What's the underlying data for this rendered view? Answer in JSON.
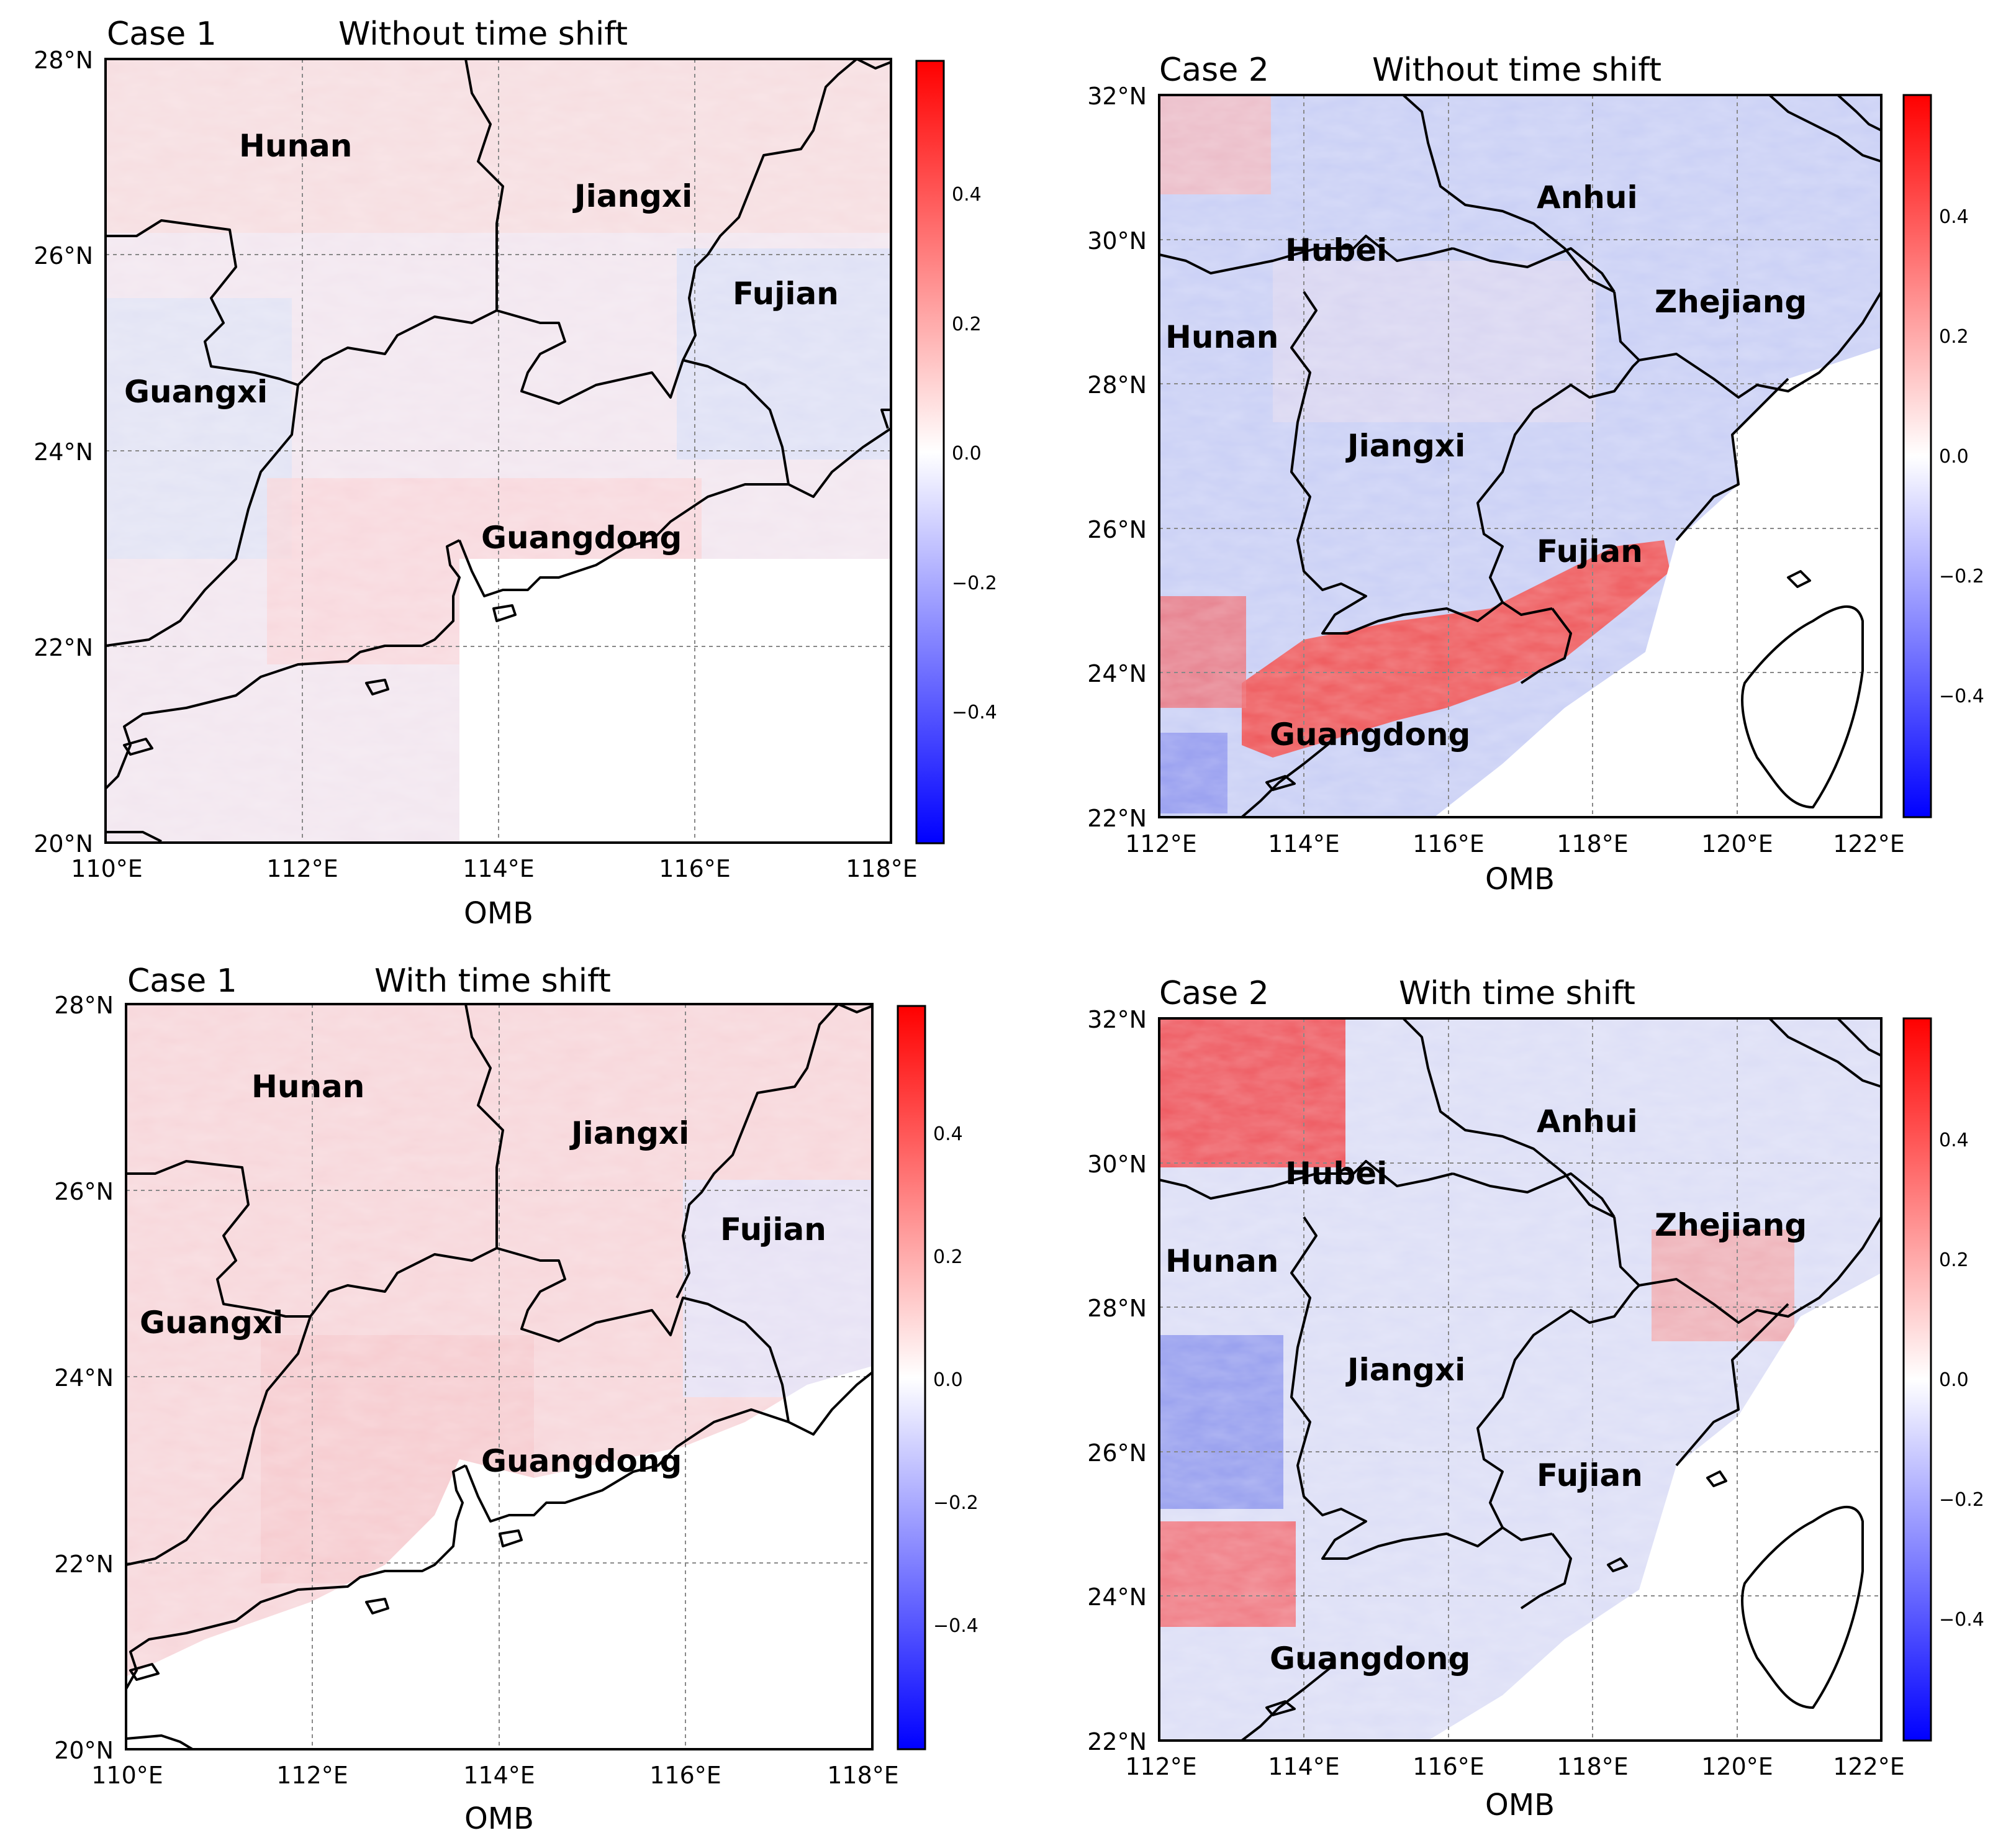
{
  "colors": {
    "positive": "#ff0000",
    "neutral": "#ffffff",
    "negative": "#0000ff"
  },
  "panels": [
    {
      "case_label": "Case 1",
      "subtitle": "Without time shift",
      "xlabel": "OMB",
      "lat_ticks": [
        "28°N",
        "26°N",
        "24°N",
        "22°N",
        "20°N"
      ],
      "lon_ticks": [
        "110°E",
        "112°E",
        "114°E",
        "116°E",
        "118°E"
      ],
      "colorbar_ticks": [
        "0.4",
        "0.2",
        "0.0",
        "−0.2",
        "−0.4"
      ],
      "regions": [
        "Hunan",
        "Jiangxi",
        "Fujian",
        "Guangxi",
        "Guangdong"
      ]
    },
    {
      "case_label": "Case 2",
      "subtitle": "Without time shift",
      "xlabel": "OMB",
      "lat_ticks": [
        "32°N",
        "30°N",
        "28°N",
        "26°N",
        "24°N",
        "22°N"
      ],
      "lon_ticks": [
        "112°E",
        "114°E",
        "116°E",
        "118°E",
        "120°E",
        "122°E"
      ],
      "colorbar_ticks": [
        "0.4",
        "0.2",
        "0.0",
        "−0.2",
        "−0.4"
      ],
      "regions": [
        "Anhui",
        "Hubei",
        "Zhejiang",
        "Hunan",
        "Jiangxi",
        "Fujian",
        "Guangdong"
      ]
    },
    {
      "case_label": "Case 1",
      "subtitle": "With time shift",
      "xlabel": "OMB",
      "lat_ticks": [
        "28°N",
        "26°N",
        "24°N",
        "22°N",
        "20°N"
      ],
      "lon_ticks": [
        "110°E",
        "112°E",
        "114°E",
        "116°E",
        "118°E"
      ],
      "colorbar_ticks": [
        "0.4",
        "0.2",
        "0.0",
        "−0.2",
        "−0.4"
      ],
      "regions": [
        "Hunan",
        "Jiangxi",
        "Fujian",
        "Guangxi",
        "Guangdong"
      ]
    },
    {
      "case_label": "Case 2",
      "subtitle": "With time shift",
      "xlabel": "OMB",
      "lat_ticks": [
        "32°N",
        "30°N",
        "28°N",
        "26°N",
        "24°N",
        "22°N"
      ],
      "lon_ticks": [
        "112°E",
        "114°E",
        "116°E",
        "118°E",
        "120°E",
        "122°E"
      ],
      "colorbar_ticks": [
        "0.4",
        "0.2",
        "0.0",
        "−0.2",
        "−0.4"
      ],
      "regions": [
        "Anhui",
        "Hubei",
        "Zhejiang",
        "Hunan",
        "Jiangxi",
        "Fujian",
        "Guangdong"
      ]
    }
  ]
}
